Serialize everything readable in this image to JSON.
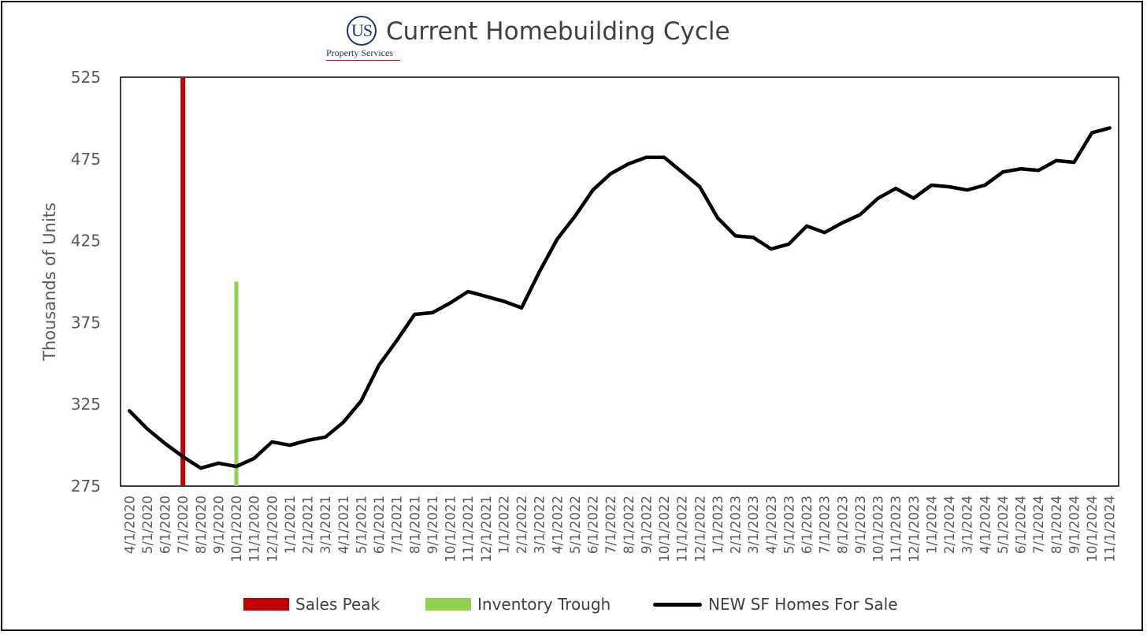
{
  "logo": {
    "mark": "US",
    "sub": "Property Services"
  },
  "colors": {
    "sales_peak": "#c00000",
    "inventory_trough": "#92d050",
    "series": "#000000",
    "axis_text": "#595959",
    "title": "#404040"
  },
  "chart_data": {
    "type": "line",
    "title": "Current Homebuilding Cycle",
    "xlabel": "",
    "ylabel": "Thousands of Units",
    "ylim": [
      275,
      525
    ],
    "yticks": [
      275,
      325,
      375,
      425,
      475,
      525
    ],
    "grid": false,
    "legend_position": "bottom",
    "categories": [
      "4/1/2020",
      "5/1/2020",
      "6/1/2020",
      "7/1/2020",
      "8/1/2020",
      "9/1/2020",
      "10/1/2020",
      "11/1/2020",
      "12/1/2020",
      "1/1/2021",
      "2/1/2021",
      "3/1/2021",
      "4/1/2021",
      "5/1/2021",
      "6/1/2021",
      "7/1/2021",
      "8/1/2021",
      "9/1/2021",
      "10/1/2021",
      "11/1/2021",
      "12/1/2021",
      "1/1/2022",
      "2/1/2022",
      "3/1/2022",
      "4/1/2022",
      "5/1/2022",
      "6/1/2022",
      "7/1/2022",
      "8/1/2022",
      "9/1/2022",
      "10/1/2022",
      "11/1/2022",
      "12/1/2022",
      "1/1/2023",
      "2/1/2023",
      "3/1/2023",
      "4/1/2023",
      "5/1/2023",
      "6/1/2023",
      "7/1/2023",
      "8/1/2023",
      "9/1/2023",
      "10/1/2023",
      "11/1/2023",
      "12/1/2023",
      "1/1/2024",
      "2/1/2024",
      "3/1/2024",
      "4/1/2024",
      "5/1/2024",
      "6/1/2024",
      "7/1/2024",
      "8/1/2024",
      "9/1/2024",
      "10/1/2024",
      "11/1/2024"
    ],
    "series": [
      {
        "name": "NEW SF Homes For Sale",
        "values": [
          321,
          310,
          301,
          293,
          286,
          289,
          287,
          292,
          302,
          300,
          303,
          305,
          314,
          327,
          349,
          364,
          380,
          381,
          387,
          394,
          391,
          388,
          384,
          406,
          426,
          440,
          456,
          466,
          472,
          476,
          476,
          467,
          458,
          439,
          428,
          427,
          420,
          423,
          434,
          430,
          436,
          441,
          451,
          457,
          451,
          459,
          458,
          456,
          459,
          467,
          469,
          468,
          474,
          473,
          491,
          494
        ]
      }
    ],
    "markers": [
      {
        "name": "Sales Peak",
        "at": "7/1/2020",
        "from": 275,
        "to": 525
      },
      {
        "name": "Inventory Trough",
        "at": "10/1/2020",
        "from": 275,
        "to": 400
      }
    ]
  }
}
